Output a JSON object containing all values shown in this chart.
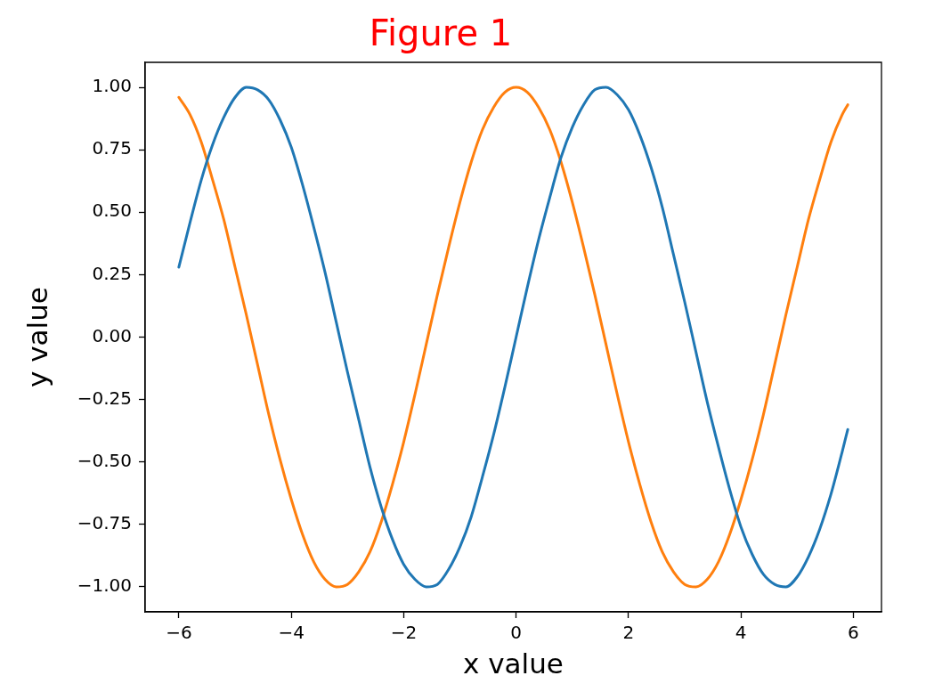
{
  "chart_data": {
    "type": "line",
    "title": "Figure 1",
    "xlabel": "x value",
    "ylabel": "y value",
    "x": [
      -6,
      -5.8,
      -5.6,
      -5.4,
      -5.2,
      -5,
      -4.8,
      -4.6,
      -4.4,
      -4.2,
      -4,
      -3.8,
      -3.6,
      -3.4,
      -3.2,
      -3,
      -2.8,
      -2.6,
      -2.4,
      -2.2,
      -2,
      -1.8,
      -1.6,
      -1.4,
      -1.2,
      -1,
      -0.8,
      -0.6,
      -0.4,
      -0.2,
      0,
      0.2,
      0.4,
      0.6,
      0.8,
      1,
      1.2,
      1.4,
      1.6,
      1.8,
      2,
      2.2,
      2.4,
      2.6,
      2.8,
      3,
      3.2,
      3.4,
      3.6,
      3.8,
      4,
      4.2,
      4.4,
      4.6,
      4.8,
      5,
      5.2,
      5.4,
      5.6,
      5.8,
      5.9
    ],
    "series": [
      {
        "color": "#1f77b4",
        "values": [
          0.28,
          0.46,
          0.63,
          0.77,
          0.88,
          0.96,
          1,
          0.99,
          0.95,
          0.87,
          0.76,
          0.61,
          0.44,
          0.26,
          0.06,
          -0.14,
          -0.33,
          -0.52,
          -0.68,
          -0.81,
          -0.91,
          -0.97,
          -1,
          -0.99,
          -0.93,
          -0.84,
          -0.72,
          -0.56,
          -0.39,
          -0.2,
          0,
          0.2,
          0.39,
          0.56,
          0.72,
          0.84,
          0.93,
          0.99,
          1,
          0.97,
          0.91,
          0.81,
          0.68,
          0.52,
          0.33,
          0.14,
          -0.06,
          -0.26,
          -0.44,
          -0.61,
          -0.76,
          -0.87,
          -0.95,
          -0.99,
          -1,
          -0.96,
          -0.88,
          -0.77,
          -0.63,
          -0.46,
          -0.37
        ]
      },
      {
        "color": "#ff7f0e",
        "values": [
          0.96,
          0.89,
          0.78,
          0.63,
          0.47,
          0.28,
          0.09,
          -0.11,
          -0.31,
          -0.49,
          -0.65,
          -0.79,
          -0.9,
          -0.97,
          -1,
          -0.99,
          -0.94,
          -0.86,
          -0.74,
          -0.59,
          -0.42,
          -0.23,
          -0.03,
          0.17,
          0.36,
          0.54,
          0.7,
          0.83,
          0.92,
          0.98,
          1,
          0.98,
          0.92,
          0.83,
          0.7,
          0.54,
          0.36,
          0.17,
          -0.03,
          -0.23,
          -0.42,
          -0.59,
          -0.74,
          -0.86,
          -0.94,
          -0.99,
          -1,
          -0.97,
          -0.9,
          -0.79,
          -0.65,
          -0.49,
          -0.31,
          -0.11,
          0.09,
          0.28,
          0.47,
          0.63,
          0.78,
          0.89,
          0.93
        ]
      }
    ],
    "xlim": [
      -6.6,
      6.5
    ],
    "ylim": [
      -1.1,
      1.1
    ],
    "xticks": [
      {
        "value": -6,
        "label": "−6"
      },
      {
        "value": -4,
        "label": "−4"
      },
      {
        "value": -2,
        "label": "−2"
      },
      0,
      2,
      4,
      6
    ],
    "yticks": [
      {
        "value": -1,
        "label": "−1.00"
      },
      {
        "value": -0.75,
        "label": "−0.75"
      },
      {
        "value": -0.5,
        "label": "−0.50"
      },
      {
        "value": -0.25,
        "label": "−0.25"
      },
      {
        "value": 0,
        "label": "0.00"
      },
      {
        "value": 0.25,
        "label": "0.25"
      },
      {
        "value": 0.5,
        "label": "0.50"
      },
      {
        "value": 0.75,
        "label": "0.75"
      },
      {
        "value": 1,
        "label": "1.00"
      }
    ],
    "grid": false,
    "legend": false,
    "marker": "none",
    "line_style": "solid"
  }
}
